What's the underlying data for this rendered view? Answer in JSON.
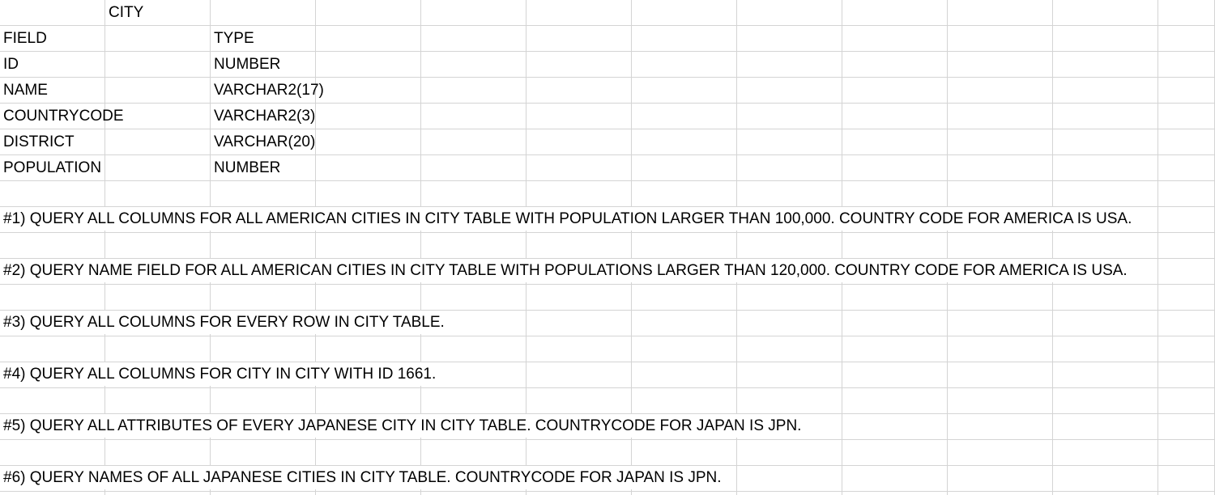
{
  "sheet": {
    "table_name": "CITY",
    "header": {
      "field": "FIELD",
      "type": "TYPE"
    },
    "fields": [
      {
        "name": "ID",
        "type": "NUMBER"
      },
      {
        "name": "NAME",
        "type": "VARCHAR2(17)"
      },
      {
        "name": "COUNTRYCODE",
        "type": "VARCHAR2(3)"
      },
      {
        "name": "DISTRICT",
        "type": "VARCHAR(20)"
      },
      {
        "name": "POPULATION",
        "type": "NUMBER"
      }
    ],
    "questions": [
      "#1) QUERY ALL COLUMNS FOR ALL AMERICAN CITIES IN CITY TABLE WITH POPULATION LARGER THAN 100,000. COUNTRY CODE FOR AMERICA IS USA.",
      "#2) QUERY NAME FIELD FOR ALL AMERICAN CITIES IN CITY TABLE WITH POPULATIONS LARGER THAN 120,000. COUNTRY CODE FOR AMERICA IS USA.",
      "#3) QUERY ALL COLUMNS FOR EVERY ROW IN CITY TABLE.",
      "#4) QUERY ALL COLUMNS FOR CITY IN CITY WITH ID 1661.",
      "#5) QUERY ALL ATTRIBUTES OF EVERY JAPANESE CITY IN CITY TABLE. COUNTRYCODE FOR JAPAN IS JPN.",
      "#6) QUERY NAMES OF ALL JAPANESE CITIES IN CITY TABLE. COUNTRYCODE FOR JAPAN IS JPN."
    ]
  }
}
